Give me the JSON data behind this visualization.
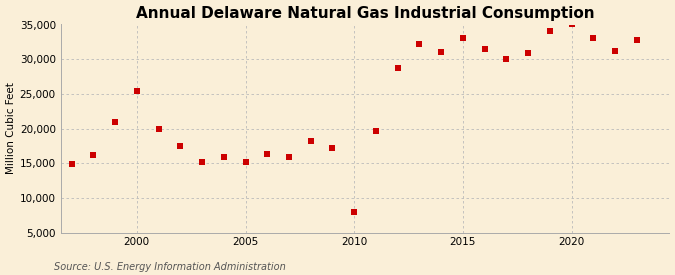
{
  "title": "Annual Delaware Natural Gas Industrial Consumption",
  "ylabel": "Million Cubic Feet",
  "source": "Source: U.S. Energy Information Administration",
  "background_color": "#faefd8",
  "plot_bg_color": "#faefd8",
  "marker_color": "#cc0000",
  "grid_color": "#bbbbbb",
  "years": [
    1997,
    1998,
    1999,
    2000,
    2001,
    2002,
    2003,
    2004,
    2005,
    2006,
    2007,
    2008,
    2009,
    2010,
    2011,
    2012,
    2013,
    2014,
    2015,
    2016,
    2017,
    2018,
    2019,
    2020,
    2021,
    2022,
    2023
  ],
  "values": [
    14900,
    16200,
    21000,
    25400,
    20000,
    17500,
    15200,
    15900,
    15200,
    16300,
    15900,
    18200,
    17200,
    8000,
    19600,
    28800,
    32200,
    31000,
    33100,
    31500,
    30000,
    30900,
    34000,
    35000,
    33000,
    31200,
    32800
  ],
  "ylim": [
    5000,
    35000
  ],
  "yticks": [
    5000,
    10000,
    15000,
    20000,
    25000,
    30000,
    35000
  ],
  "xlim": [
    1996.5,
    2024.5
  ],
  "xticks": [
    2000,
    2005,
    2010,
    2015,
    2020
  ],
  "title_fontsize": 11,
  "ylabel_fontsize": 7.5,
  "tick_fontsize": 7.5,
  "source_fontsize": 7
}
